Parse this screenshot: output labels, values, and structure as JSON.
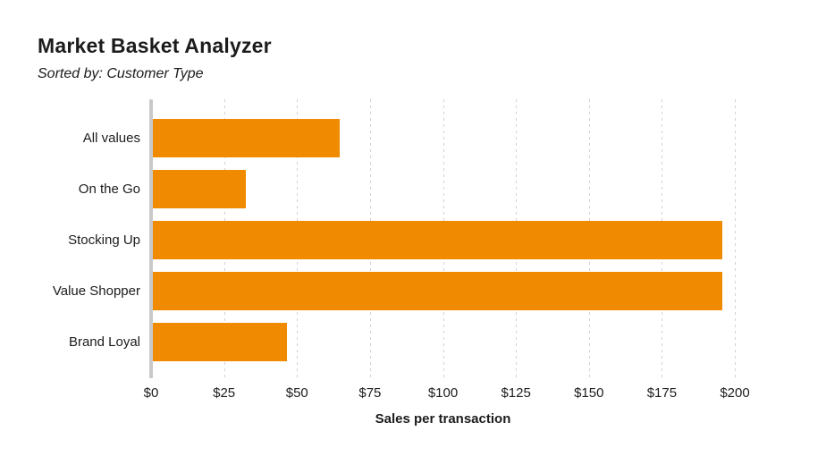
{
  "header": {
    "title": "Market Basket Analyzer",
    "subtitle": "Sorted by: Customer Type"
  },
  "chart_data": {
    "type": "bar",
    "orientation": "horizontal",
    "title": "Market Basket Analyzer",
    "subtitle": "Sorted by: Customer Type",
    "categories": [
      "All values",
      "On the Go",
      "Stocking Up",
      "Value Shopper",
      "Brand Loyal"
    ],
    "values": [
      64,
      32,
      195,
      195,
      46
    ],
    "xlabel": "Sales per transaction",
    "ylabel": "",
    "xlim": [
      0,
      200
    ],
    "x_tick_values": [
      0,
      25,
      50,
      75,
      100,
      125,
      150,
      175,
      200
    ],
    "x_tick_labels": [
      "$0",
      "$25",
      "$50",
      "$75",
      "$100",
      "$125",
      "$150",
      "$175",
      "$200"
    ],
    "grid": "vertical-dotted",
    "legend": "none",
    "colors": {
      "bar": "#F08A00",
      "axis_line": "#C9C9C9",
      "gridline": "#D2D2D2",
      "text": "#1C1C1C"
    }
  }
}
